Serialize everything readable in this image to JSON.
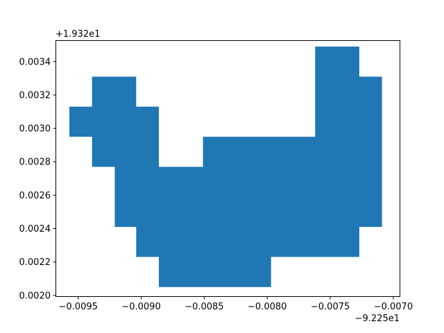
{
  "chart_data": {
    "type": "area",
    "title": "",
    "xlabel": "",
    "ylabel": "",
    "x_offset_text": "−9.225e1",
    "y_offset_text": "+1.932e1",
    "xlim": [
      -0.00968,
      -0.00695
    ],
    "ylim": [
      0.001995,
      0.003528
    ],
    "x_ticks": [
      {
        "value": -0.0095,
        "label": "−0.0095"
      },
      {
        "value": -0.009,
        "label": "−0.0090"
      },
      {
        "value": -0.0085,
        "label": "−0.0085"
      },
      {
        "value": -0.008,
        "label": "−0.0080"
      },
      {
        "value": -0.0075,
        "label": "−0.0075"
      },
      {
        "value": -0.007,
        "label": "−0.0070"
      }
    ],
    "y_ticks": [
      {
        "value": 0.002,
        "label": "0.0020"
      },
      {
        "value": 0.0022,
        "label": "0.0022"
      },
      {
        "value": 0.0024,
        "label": "0.0024"
      },
      {
        "value": 0.0026,
        "label": "0.0026"
      },
      {
        "value": 0.0028,
        "label": "0.0028"
      },
      {
        "value": 0.003,
        "label": "0.0030"
      },
      {
        "value": 0.0032,
        "label": "0.0032"
      },
      {
        "value": 0.0034,
        "label": "0.0034"
      }
    ],
    "grid": false,
    "fill_color": "#1f77b4",
    "polygon": [
      [
        -0.00957,
        0.00313
      ],
      [
        -0.00939,
        0.00313
      ],
      [
        -0.00939,
        0.00331
      ],
      [
        -0.00904,
        0.00331
      ],
      [
        -0.00904,
        0.00313
      ],
      [
        -0.00886,
        0.00313
      ],
      [
        -0.00886,
        0.00277
      ],
      [
        -0.00851,
        0.00277
      ],
      [
        -0.00851,
        0.00295
      ],
      [
        -0.00762,
        0.00295
      ],
      [
        -0.00762,
        0.00349
      ],
      [
        -0.00727,
        0.00349
      ],
      [
        -0.00727,
        0.00331
      ],
      [
        -0.00709,
        0.00331
      ],
      [
        -0.00709,
        0.00241
      ],
      [
        -0.00727,
        0.00241
      ],
      [
        -0.00727,
        0.00223
      ],
      [
        -0.00797,
        0.00223
      ],
      [
        -0.00797,
        0.00205
      ],
      [
        -0.00886,
        0.00205
      ],
      [
        -0.00886,
        0.00223
      ],
      [
        -0.00904,
        0.00223
      ],
      [
        -0.00904,
        0.00241
      ],
      [
        -0.00921,
        0.00241
      ],
      [
        -0.00921,
        0.00277
      ],
      [
        -0.00939,
        0.00277
      ],
      [
        -0.00939,
        0.00295
      ],
      [
        -0.00957,
        0.00295
      ]
    ]
  }
}
